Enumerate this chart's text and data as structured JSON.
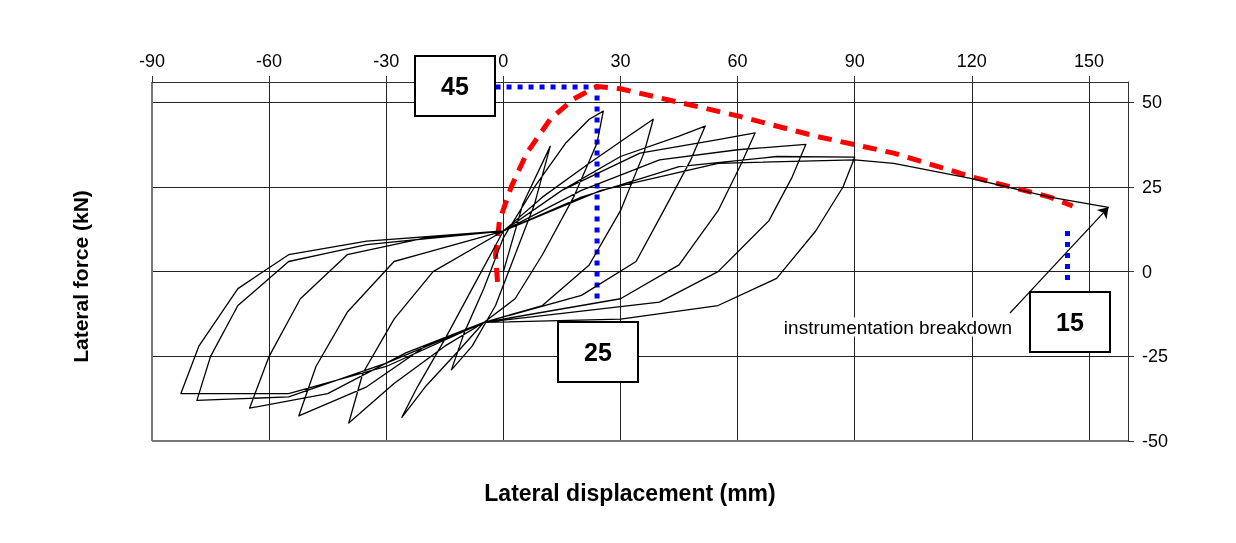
{
  "chart_data": {
    "type": "line",
    "xlabel": "Lateral displacement (mm)",
    "ylabel": "Lateral force (kN)",
    "xlim": [
      -90,
      160
    ],
    "xticks": [
      -90,
      -60,
      -30,
      0,
      30,
      60,
      90,
      120,
      150
    ],
    "ylim": [
      -50,
      56
    ],
    "yticks": [
      -50,
      -25,
      0,
      25,
      50
    ],
    "grid": true,
    "marker": "none",
    "series": [
      {
        "color": "#000000",
        "line_style": "solid",
        "x": [
          0,
          5,
          12,
          8,
          3,
          -2,
          -8,
          -13.3,
          -10,
          -5,
          0,
          8,
          16,
          22,
          25.6,
          24,
          18,
          10,
          3,
          -5,
          -12,
          -20,
          -26,
          -22,
          -15,
          -8,
          0,
          10,
          22,
          32,
          38.4,
          36,
          30,
          22,
          10,
          -5,
          -15,
          -28,
          -39.6,
          -36,
          -28,
          -18,
          0,
          15,
          30,
          45,
          51.7,
          48,
          42,
          34,
          20,
          -5,
          -20,
          -35,
          -52.4,
          -48,
          -40,
          -28,
          0,
          15,
          35,
          55,
          64.5,
          61,
          55,
          45,
          30,
          -5,
          -25,
          -45,
          -65,
          -60,
          -52,
          -40,
          -20,
          0,
          20,
          40,
          60,
          77.5,
          74,
          68,
          55,
          40,
          -5,
          -30,
          -55,
          -78.5,
          -75,
          -68,
          -55,
          -35,
          0,
          20,
          45,
          70,
          90,
          87,
          80,
          70,
          55,
          30,
          -5,
          -30,
          -55,
          -82.6,
          -78,
          -68,
          -55,
          -35,
          0,
          25,
          55,
          90,
          100,
          120,
          140,
          155
        ],
        "values": [
          0,
          20,
          37,
          20,
          5,
          -10,
          -22,
          -29,
          -18,
          -5,
          10,
          25,
          38,
          45,
          47.4,
          38,
          22,
          5,
          -8,
          -15,
          -24,
          -34,
          -43,
          -34,
          -20,
          -5,
          12,
          22,
          32,
          40,
          45,
          35,
          18,
          2,
          -10,
          -15,
          -22,
          -33,
          -44.7,
          -30,
          -14,
          0,
          12,
          24,
          34,
          40,
          43,
          33,
          20,
          3,
          -7,
          -15,
          -22,
          -34,
          -42.6,
          -28,
          -12,
          3,
          12,
          24,
          35,
          39,
          41,
          32,
          18,
          2,
          -8,
          -15,
          -24,
          -36,
          -40.3,
          -25,
          -8,
          5,
          10,
          12,
          24,
          33,
          36,
          37.6,
          28,
          15,
          0,
          -9,
          -15,
          -27,
          -37,
          -38,
          -25,
          -10,
          3,
          8,
          12,
          22,
          31,
          34,
          33.8,
          25,
          12,
          -2,
          -10,
          -14,
          -15,
          -28,
          -36,
          -36,
          -22,
          -5,
          5,
          9,
          12,
          24,
          32,
          33,
          32,
          27.5,
          22,
          19
        ]
      },
      {
        "color": "#ff0000",
        "line_style": "dashed",
        "x": [
          -1.5,
          -2,
          -1,
          2,
          6,
          12,
          18,
          24,
          30,
          45,
          60,
          80,
          100,
          120,
          140,
          145.8
        ],
        "values": [
          -3,
          5,
          15,
          25,
          35,
          45,
          51,
          54.7,
          54,
          50,
          46,
          40,
          35,
          28,
          22,
          19.4
        ]
      },
      {
        "color": "#0000ff",
        "line_style": "dotted",
        "x": [
          -2,
          24,
          24
        ],
        "values": [
          54.5,
          54.5,
          -9.4
        ]
      },
      {
        "color": "#0000ff",
        "line_style": "dotted",
        "x": [
          144.5,
          144.5
        ],
        "values": [
          12,
          -2.6
        ]
      }
    ],
    "annotations": [
      "45",
      "25",
      "15",
      {
        "text": "instrumentation breakdown",
        "x": 155,
        "y": 19
      }
    ]
  }
}
